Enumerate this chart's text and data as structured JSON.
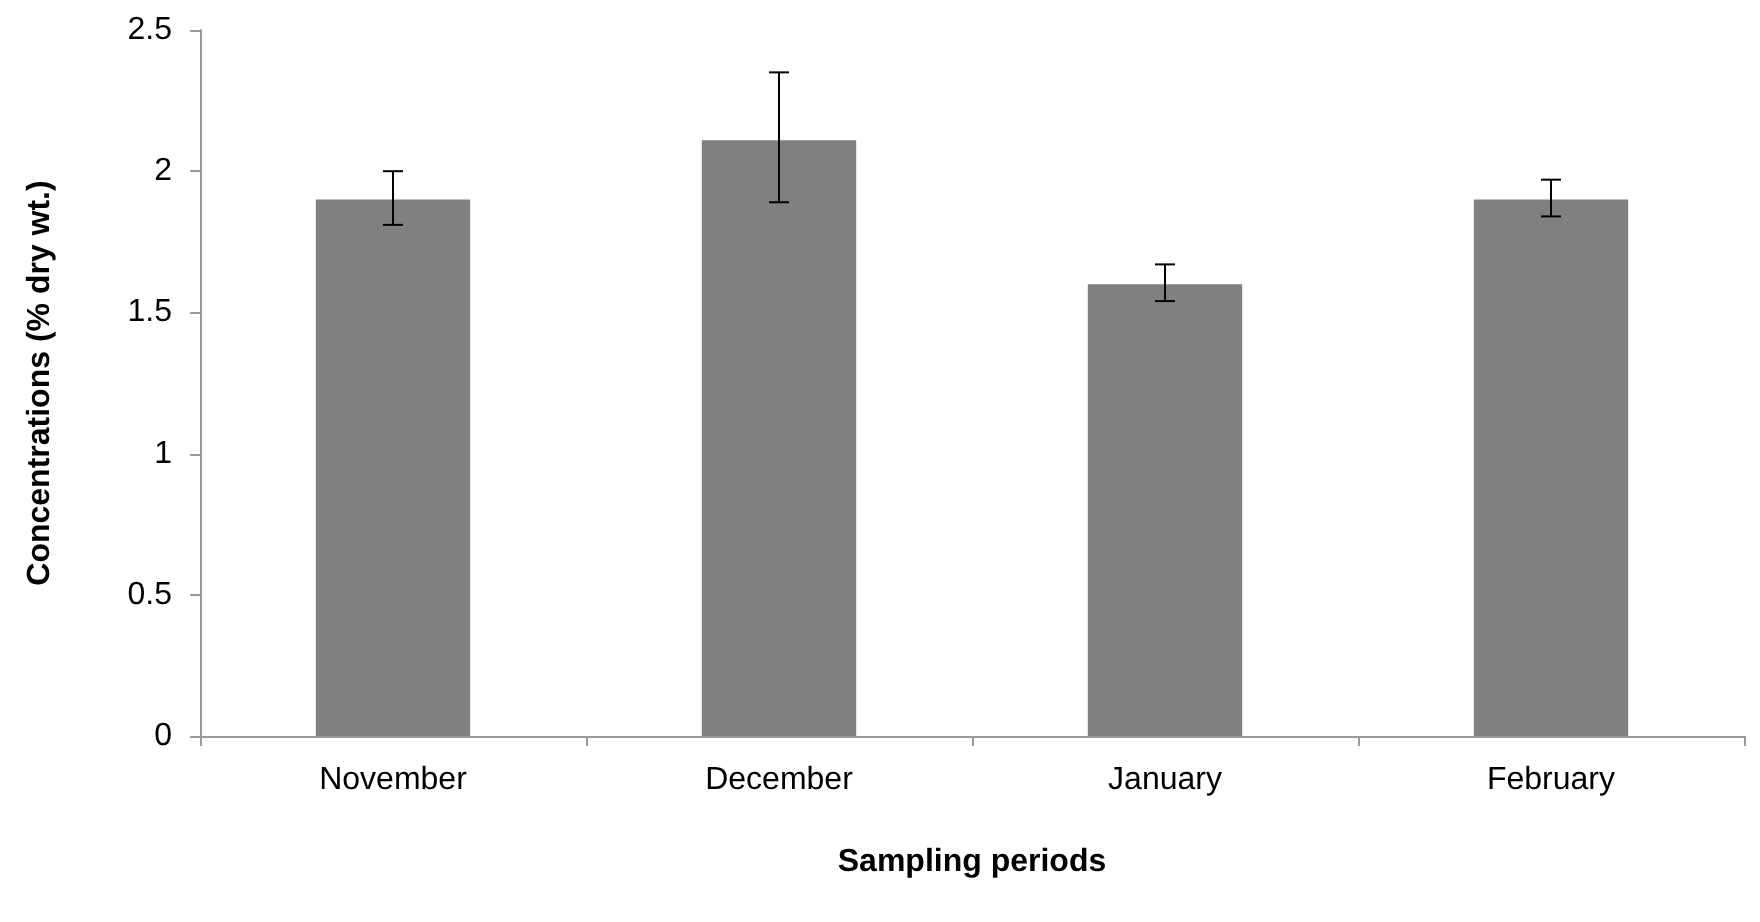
{
  "chart_data": {
    "type": "bar",
    "xlabel": "Sampling periods",
    "ylabel": "Concentrations (% dry wt.)",
    "categories": [
      "November",
      "December",
      "January",
      "February"
    ],
    "values": [
      1.9,
      2.11,
      1.6,
      1.9
    ],
    "color": "#808080",
    "errors": [
      [
        1.81,
        2.0
      ],
      [
        1.89,
        2.35
      ],
      [
        1.54,
        1.67
      ],
      [
        1.84,
        1.97
      ]
    ],
    "ylim": [
      0,
      2.5
    ],
    "yticks": [
      0,
      0.5,
      1,
      1.5,
      2,
      2.5
    ],
    "grid": false
  }
}
